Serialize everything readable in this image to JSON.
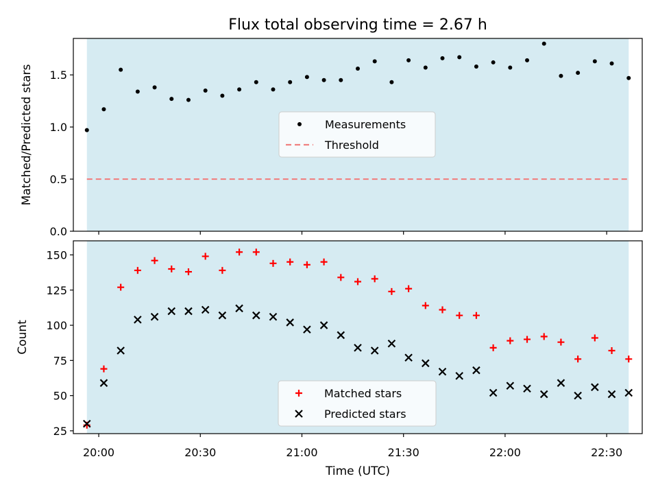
{
  "figure": {
    "title": "Flux total observing time = 2.67 h",
    "xlabel": "Time (UTC)",
    "x_ticks": [
      {
        "t": 0,
        "label": "20:00"
      },
      {
        "t": 30,
        "label": "20:30"
      },
      {
        "t": 60,
        "label": "21:00"
      },
      {
        "t": 90,
        "label": "21:30"
      },
      {
        "t": 120,
        "label": "22:00"
      },
      {
        "t": 150,
        "label": "22:30"
      }
    ],
    "x_unit_note": "minutes after 20:00 UTC",
    "xlim": [
      -7.5,
      160.5
    ],
    "shaded_span": {
      "x": [
        -3.5,
        156.5
      ],
      "color": "#add8e6"
    }
  },
  "chart_data": [
    {
      "type": "scatter",
      "panel": "top",
      "ylabel": "Matched/Predicted stars",
      "ylim": [
        0,
        1.85
      ],
      "yticks": [
        0.0,
        0.5,
        1.0,
        1.5
      ],
      "ytick_labels": [
        "0.0",
        "0.5",
        "1.0",
        "1.5"
      ],
      "series": [
        {
          "name": "Measurements",
          "marker": "dot",
          "color": "#000000",
          "x": [
            -3.5,
            1.5,
            6.5,
            11.5,
            16.5,
            21.5,
            26.5,
            31.5,
            36.5,
            41.5,
            46.5,
            51.5,
            56.5,
            61.5,
            66.5,
            71.5,
            76.5,
            81.5,
            86.5,
            91.5,
            96.5,
            101.5,
            106.5,
            111.5,
            116.5,
            121.5,
            126.5,
            131.5,
            136.5,
            141.5,
            146.5,
            151.5,
            156.5
          ],
          "y": [
            0.97,
            1.17,
            1.55,
            1.34,
            1.38,
            1.27,
            1.26,
            1.35,
            1.3,
            1.36,
            1.43,
            1.36,
            1.43,
            1.48,
            1.45,
            1.45,
            1.56,
            1.63,
            1.43,
            1.64,
            1.57,
            1.66,
            1.67,
            1.58,
            1.62,
            1.57,
            1.64,
            1.8,
            1.49,
            1.52,
            1.63,
            1.61,
            1.47
          ]
        },
        {
          "name": "Threshold",
          "marker": "dashed-line",
          "color": "#f08080",
          "x": [
            -3.5,
            156.5
          ],
          "y": [
            0.5,
            0.5
          ]
        }
      ],
      "legend": {
        "placement": "center",
        "entries": [
          "Measurements",
          "Threshold"
        ]
      }
    },
    {
      "type": "scatter",
      "panel": "bottom",
      "ylabel": "Count",
      "ylim": [
        23,
        160
      ],
      "yticks": [
        25,
        50,
        75,
        100,
        125,
        150
      ],
      "ytick_labels": [
        "25",
        "50",
        "75",
        "100",
        "125",
        "150"
      ],
      "series": [
        {
          "name": "Matched stars",
          "marker": "plus",
          "color": "#ff0000",
          "x": [
            -3.5,
            1.5,
            6.5,
            11.5,
            16.5,
            21.5,
            26.5,
            31.5,
            36.5,
            41.5,
            46.5,
            51.5,
            56.5,
            61.5,
            66.5,
            71.5,
            76.5,
            81.5,
            86.5,
            91.5,
            96.5,
            101.5,
            106.5,
            111.5,
            116.5,
            121.5,
            126.5,
            131.5,
            136.5,
            141.5,
            146.5,
            151.5,
            156.5
          ],
          "y": [
            29,
            69,
            127,
            139,
            146,
            140,
            138,
            149,
            139,
            152,
            152,
            144,
            145,
            143,
            145,
            134,
            131,
            133,
            124,
            126,
            114,
            111,
            107,
            107,
            84,
            89,
            90,
            92,
            88,
            76,
            91,
            82,
            76
          ]
        },
        {
          "name": "Predicted stars",
          "marker": "x",
          "color": "#000000",
          "x": [
            -3.5,
            1.5,
            6.5,
            11.5,
            16.5,
            21.5,
            26.5,
            31.5,
            36.5,
            41.5,
            46.5,
            51.5,
            56.5,
            61.5,
            66.5,
            71.5,
            76.5,
            81.5,
            86.5,
            91.5,
            96.5,
            101.5,
            106.5,
            111.5,
            116.5,
            121.5,
            126.5,
            131.5,
            136.5,
            141.5,
            146.5,
            151.5,
            156.5
          ],
          "y": [
            30,
            59,
            82,
            104,
            106,
            110,
            110,
            111,
            107,
            112,
            107,
            106,
            102,
            97,
            100,
            93,
            84,
            82,
            87,
            77,
            73,
            67,
            64,
            68,
            52,
            57,
            55,
            51,
            59,
            50,
            56,
            51,
            52
          ]
        }
      ],
      "legend": {
        "placement": "lower center",
        "entries": [
          "Matched stars",
          "Predicted stars"
        ]
      }
    }
  ]
}
